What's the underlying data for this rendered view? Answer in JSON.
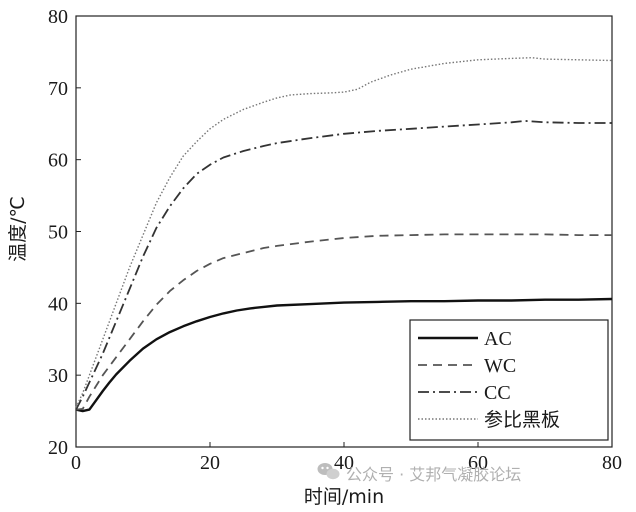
{
  "chart_data": {
    "type": "line",
    "xlabel": "时间/min",
    "ylabel": "温度/℃",
    "xlim": [
      0,
      80
    ],
    "ylim": [
      20,
      80
    ],
    "xticks": [
      0,
      20,
      40,
      60,
      80
    ],
    "yticks": [
      20,
      30,
      40,
      50,
      60,
      70,
      80
    ],
    "grid": false,
    "legend_position": "bottom-right",
    "series": [
      {
        "name": "AC",
        "style": "solid",
        "color": "#111111",
        "points": [
          [
            0,
            25.2
          ],
          [
            1,
            25.0
          ],
          [
            2,
            25.2
          ],
          [
            3,
            26.5
          ],
          [
            4,
            27.8
          ],
          [
            5,
            29.0
          ],
          [
            6,
            30.1
          ],
          [
            8,
            32.0
          ],
          [
            10,
            33.7
          ],
          [
            12,
            35.0
          ],
          [
            14,
            36.0
          ],
          [
            16,
            36.8
          ],
          [
            18,
            37.5
          ],
          [
            20,
            38.1
          ],
          [
            22,
            38.6
          ],
          [
            24,
            39.0
          ],
          [
            26,
            39.3
          ],
          [
            28,
            39.5
          ],
          [
            30,
            39.7
          ],
          [
            35,
            39.9
          ],
          [
            40,
            40.1
          ],
          [
            45,
            40.2
          ],
          [
            50,
            40.3
          ],
          [
            55,
            40.3
          ],
          [
            60,
            40.4
          ],
          [
            65,
            40.4
          ],
          [
            70,
            40.5
          ],
          [
            75,
            40.5
          ],
          [
            80,
            40.6
          ]
        ]
      },
      {
        "name": "WC",
        "style": "dashed",
        "color": "#555555",
        "points": [
          [
            0,
            25.2
          ],
          [
            1,
            25.3
          ],
          [
            2,
            27.0
          ],
          [
            4,
            30.0
          ],
          [
            6,
            32.5
          ],
          [
            8,
            35.0
          ],
          [
            10,
            37.5
          ],
          [
            12,
            39.8
          ],
          [
            14,
            41.7
          ],
          [
            16,
            43.2
          ],
          [
            18,
            44.5
          ],
          [
            20,
            45.5
          ],
          [
            22,
            46.3
          ],
          [
            25,
            47.0
          ],
          [
            28,
            47.7
          ],
          [
            30,
            48.0
          ],
          [
            35,
            48.6
          ],
          [
            40,
            49.1
          ],
          [
            45,
            49.4
          ],
          [
            50,
            49.5
          ],
          [
            55,
            49.6
          ],
          [
            60,
            49.6
          ],
          [
            65,
            49.6
          ],
          [
            70,
            49.6
          ],
          [
            75,
            49.5
          ],
          [
            80,
            49.5
          ]
        ]
      },
      {
        "name": "CC",
        "style": "dashdot",
        "color": "#333333",
        "points": [
          [
            0,
            25.2
          ],
          [
            1,
            27.0
          ],
          [
            2,
            29.0
          ],
          [
            4,
            33.0
          ],
          [
            6,
            37.5
          ],
          [
            8,
            42.0
          ],
          [
            10,
            46.5
          ],
          [
            12,
            50.5
          ],
          [
            14,
            53.5
          ],
          [
            16,
            56.0
          ],
          [
            18,
            58.0
          ],
          [
            20,
            59.3
          ],
          [
            22,
            60.3
          ],
          [
            25,
            61.2
          ],
          [
            28,
            61.9
          ],
          [
            30,
            62.3
          ],
          [
            35,
            63.0
          ],
          [
            40,
            63.6
          ],
          [
            45,
            64.0
          ],
          [
            50,
            64.3
          ],
          [
            55,
            64.6
          ],
          [
            60,
            64.9
          ],
          [
            65,
            65.2
          ],
          [
            67,
            65.4
          ],
          [
            70,
            65.2
          ],
          [
            75,
            65.1
          ],
          [
            80,
            65.1
          ]
        ]
      },
      {
        "name": "参比黑板",
        "style": "dotted",
        "color": "#777777",
        "points": [
          [
            0,
            25.5
          ],
          [
            1,
            27.5
          ],
          [
            2,
            30.0
          ],
          [
            4,
            35.0
          ],
          [
            6,
            40.0
          ],
          [
            8,
            45.0
          ],
          [
            10,
            49.5
          ],
          [
            12,
            54.0
          ],
          [
            14,
            57.5
          ],
          [
            16,
            60.5
          ],
          [
            18,
            62.5
          ],
          [
            20,
            64.3
          ],
          [
            22,
            65.6
          ],
          [
            25,
            67.0
          ],
          [
            28,
            68.0
          ],
          [
            30,
            68.6
          ],
          [
            32,
            69.0
          ],
          [
            35,
            69.2
          ],
          [
            38,
            69.3
          ],
          [
            40,
            69.4
          ],
          [
            42,
            69.8
          ],
          [
            44,
            70.8
          ],
          [
            47,
            71.8
          ],
          [
            50,
            72.6
          ],
          [
            55,
            73.4
          ],
          [
            60,
            73.9
          ],
          [
            65,
            74.1
          ],
          [
            68,
            74.2
          ],
          [
            70,
            74.0
          ],
          [
            75,
            73.9
          ],
          [
            80,
            73.8
          ]
        ]
      }
    ]
  },
  "watermark": {
    "text": "公众号 · 艾邦气凝胶论坛",
    "icon": "wechat-icon"
  }
}
